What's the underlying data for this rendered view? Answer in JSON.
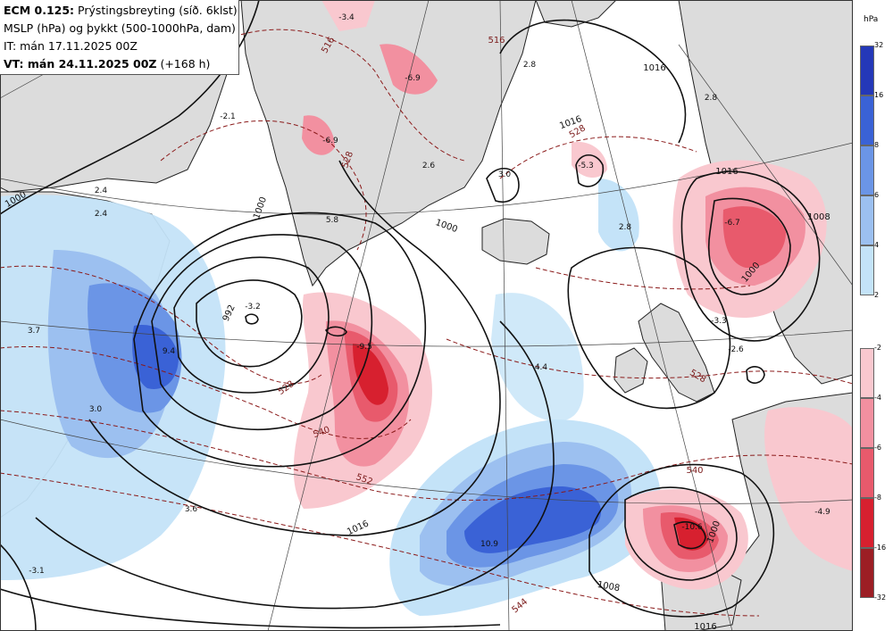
{
  "header": {
    "line1_bold": "ECM 0.125:",
    "line1_rest": "Prýstingsbreyting (síð. 6klst)",
    "line2": "MSLP (hPa) og þykkt (500-1000hPa, dam)",
    "line3": "IT: mán 17.11.2025 00Z",
    "line4_bold": "VT: mán 24.11.2025 00Z",
    "line4_rest": "(+168 h)"
  },
  "legend": {
    "unit": "hPa",
    "rising": [
      {
        "value": "32",
        "color": "#2438b8"
      },
      {
        "value": "16",
        "color": "#3a62d6"
      },
      {
        "value": "8",
        "color": "#6b95e6"
      },
      {
        "value": "6",
        "color": "#9cc0f0"
      },
      {
        "value": "4",
        "color": "#c4e3f8"
      },
      {
        "value": "2",
        "color": ""
      }
    ],
    "falling": [
      {
        "value": "-2",
        "color": "#f9c8cf"
      },
      {
        "value": "-4",
        "color": "#f290a0"
      },
      {
        "value": "-6",
        "color": "#e85a6c"
      },
      {
        "value": "-8",
        "color": "#d7202f"
      },
      {
        "value": "-16",
        "color": "#9c1e24"
      },
      {
        "value": "-32",
        "color": ""
      }
    ]
  },
  "pressure_change_labels": [
    {
      "text": "-3.4"
    },
    {
      "text": "-6.9"
    },
    {
      "text": "2.8"
    },
    {
      "text": "2.8"
    },
    {
      "text": "-2.1"
    },
    {
      "text": "-6.9"
    },
    {
      "text": "2.6"
    },
    {
      "text": "3.0"
    },
    {
      "text": "-5.3"
    },
    {
      "text": "2.4"
    },
    {
      "text": "2.4"
    },
    {
      "text": "5.8"
    },
    {
      "text": "2.8"
    },
    {
      "text": "-6.7"
    },
    {
      "text": "-3.2"
    },
    {
      "text": "-3.3"
    },
    {
      "text": "3.7"
    },
    {
      "text": "9.4"
    },
    {
      "text": "-9.5"
    },
    {
      "text": "-2.6"
    },
    {
      "text": "4.4"
    },
    {
      "text": "3.0"
    },
    {
      "text": "3.6"
    },
    {
      "text": "10.9"
    },
    {
      "text": "-10.6"
    },
    {
      "text": "-4.9"
    },
    {
      "text": "-3.1"
    }
  ],
  "isobar_labels": [
    {
      "text": "1016"
    },
    {
      "text": "1016"
    },
    {
      "text": "1000"
    },
    {
      "text": "1000"
    },
    {
      "text": "1000"
    },
    {
      "text": "992"
    },
    {
      "text": "1000"
    },
    {
      "text": "1008"
    },
    {
      "text": "1016"
    },
    {
      "text": "1008"
    },
    {
      "text": "1000"
    },
    {
      "text": "1016"
    },
    {
      "text": "1016"
    }
  ],
  "thickness_labels": [
    {
      "text": "516"
    },
    {
      "text": "528"
    },
    {
      "text": "528"
    },
    {
      "text": "528"
    },
    {
      "text": "540"
    },
    {
      "text": "552"
    },
    {
      "text": "540"
    },
    {
      "text": "544"
    },
    {
      "text": "516"
    },
    {
      "text": "528"
    }
  ]
}
